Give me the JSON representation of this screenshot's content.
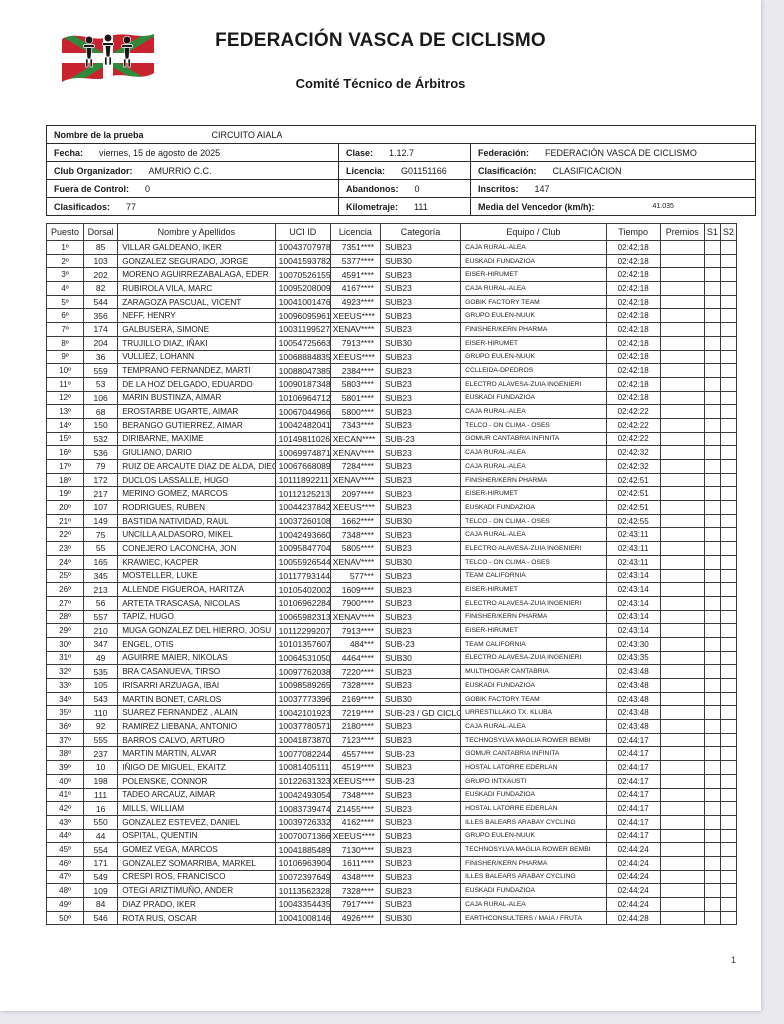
{
  "header": {
    "title": "FEDERACIÓN VASCA DE CICLISMO",
    "subtitle": "Comité Técnico de Árbitros",
    "logo": {
      "name": "basque-flag-cyclists-logo",
      "flag_red": "#c9242e",
      "flag_green": "#2f8a3c",
      "cross_white": "#ffffff"
    }
  },
  "info": {
    "nombre_prueba": {
      "label": "Nombre de la prueba",
      "value": "CIRCUITO AIALA"
    },
    "fecha": {
      "label": "Fecha:",
      "value": "viernes, 15 de agosto de 2025"
    },
    "clase": {
      "label": "Clase:",
      "value": "1.12.7"
    },
    "federacion": {
      "label": "Federación:",
      "value": "FEDERACIÓN VASCA DE CICLISMO"
    },
    "club_organizador": {
      "label": "Club Organizador:",
      "value": "AMURRIO C.C."
    },
    "licencia": {
      "label": "Licencia:",
      "value": "G01151166"
    },
    "clasificacion": {
      "label": "Clasificación:",
      "value": "CLASIFICACION"
    },
    "fuera_de_control": {
      "label": "Fuera de Control:",
      "value": "0"
    },
    "abandonos": {
      "label": "Abandonos:",
      "value": "0"
    },
    "inscritos": {
      "label": "Inscritos:",
      "value": "147"
    },
    "clasificados": {
      "label": "Clasificados:",
      "value": "77"
    },
    "kilometraje": {
      "label": "Kilometraje:",
      "value": "111"
    },
    "media_vencedor": {
      "label": "Media del Vencedor (km/h):",
      "value": "41.035"
    }
  },
  "table": {
    "columns": [
      {
        "key": "puesto",
        "label": "Puesto"
      },
      {
        "key": "dorsal",
        "label": "Dorsal"
      },
      {
        "key": "nombre",
        "label": "Nombre y Apellidos"
      },
      {
        "key": "uci_id",
        "label": "UCI ID"
      },
      {
        "key": "licencia",
        "label": "Licencia"
      },
      {
        "key": "categoria",
        "label": "Categoría"
      },
      {
        "key": "equipo",
        "label": "Equipo / Club"
      },
      {
        "key": "tiempo",
        "label": "Tiempo"
      },
      {
        "key": "premios",
        "label": "Premios"
      },
      {
        "key": "s1",
        "label": "S1"
      },
      {
        "key": "s2",
        "label": "S2"
      }
    ],
    "rows": [
      {
        "puesto": "1º",
        "dorsal": "85",
        "nombre": "VILLAR GALDEANO, IKER",
        "uci_id": "10043707978",
        "licencia": "7351****",
        "categoria": "SUB23",
        "equipo": "CAJA RURAL-ALEA",
        "tiempo": "02:42:18"
      },
      {
        "puesto": "2º",
        "dorsal": "103",
        "nombre": "GONZALEZ SEGURADO, JORGE",
        "uci_id": "10041593782",
        "licencia": "5377****",
        "categoria": "SUB30",
        "equipo": "EUSKADI FUNDAZIOA",
        "tiempo": "02:42:18"
      },
      {
        "puesto": "3º",
        "dorsal": "202",
        "nombre": "MORENO AGUIRREZABALAGA, EDER",
        "uci_id": "10070526155",
        "licencia": "4591****",
        "categoria": "SUB23",
        "equipo": "EISER-HIRUMET",
        "tiempo": "02:42:18"
      },
      {
        "puesto": "4º",
        "dorsal": "82",
        "nombre": "RUBIROLA VILA, MARC",
        "uci_id": "10095208009",
        "licencia": "4167****",
        "categoria": "SUB23",
        "equipo": "CAJA RURAL-ALEA",
        "tiempo": "02:42:18"
      },
      {
        "puesto": "5º",
        "dorsal": "544",
        "nombre": "ZARAGOZA PASCUAL, VICENT",
        "uci_id": "10041001476",
        "licencia": "4923****",
        "categoria": "SUB23",
        "equipo": "GOBIK FACTORY TEAM",
        "tiempo": "02:42:18"
      },
      {
        "puesto": "6º",
        "dorsal": "356",
        "nombre": "NEFF, HENRY",
        "uci_id": "10096095961",
        "licencia": "XEEUS****",
        "categoria": "SUB23",
        "equipo": "GRUPO EULEN-NUUK",
        "tiempo": "02:42:18"
      },
      {
        "puesto": "7º",
        "dorsal": "174",
        "nombre": "GALBUSERA, SIMONE",
        "uci_id": "10031199527",
        "licencia": "XENAV****",
        "categoria": "SUB23",
        "equipo": "FINISHER/KERN PHARMA",
        "tiempo": "02:42:18"
      },
      {
        "puesto": "8º",
        "dorsal": "204",
        "nombre": "TRUJILLO DIAZ, IÑAKI",
        "uci_id": "10054725663",
        "licencia": "7913****",
        "categoria": "SUB30",
        "equipo": "EISER-HIRUMET",
        "tiempo": "02:42:18"
      },
      {
        "puesto": "9º",
        "dorsal": "36",
        "nombre": "VULLIEZ, LOHANN",
        "uci_id": "10068884835",
        "licencia": "XEEUS****",
        "categoria": "SUB23",
        "equipo": "GRUPO EULEN-NUUK",
        "tiempo": "02:42:18"
      },
      {
        "puesto": "10º",
        "dorsal": "559",
        "nombre": "TEMPRANO FERNANDEZ, MARTI",
        "uci_id": "10088047385",
        "licencia": "2384****",
        "categoria": "SUB23",
        "equipo": "CCLLEIDA-DPEDROS",
        "tiempo": "02:42:18"
      },
      {
        "puesto": "11º",
        "dorsal": "53",
        "nombre": "DE LA HOZ DELGADO, EDUARDO",
        "uci_id": "10090187348",
        "licencia": "5803****",
        "categoria": "SUB23",
        "equipo": "ELECTRO ALAVESA-ZUIA INGENIERI",
        "tiempo": "02:42:18"
      },
      {
        "puesto": "12º",
        "dorsal": "106",
        "nombre": "MARIN BUSTINZA, AIMAR",
        "uci_id": "10106964712",
        "licencia": "5801****",
        "categoria": "SUB23",
        "equipo": "EUSKADI FUNDAZIOA",
        "tiempo": "02:42:18"
      },
      {
        "puesto": "13º",
        "dorsal": "68",
        "nombre": "EROSTARBE UGARTE, AIMAR",
        "uci_id": "10067044966",
        "licencia": "5800****",
        "categoria": "SUB23",
        "equipo": "CAJA RURAL-ALEA",
        "tiempo": "02:42:22"
      },
      {
        "puesto": "14º",
        "dorsal": "150",
        "nombre": "BERANGO GUTIERREZ, AIMAR",
        "uci_id": "10042482041",
        "licencia": "7343****",
        "categoria": "SUB23",
        "equipo": "TELCO - ON CLIMA - OSES",
        "tiempo": "02:42:22"
      },
      {
        "puesto": "15º",
        "dorsal": "532",
        "nombre": "DIRIBARNE, MAXIME",
        "uci_id": "10149811026",
        "licencia": "XECAN****",
        "categoria": "SUB-23",
        "equipo": "GOMUR CANTABRIA INFINITA",
        "tiempo": "02:42:22"
      },
      {
        "puesto": "16º",
        "dorsal": "536",
        "nombre": "GIULIANO, DARIO",
        "uci_id": "10069974871",
        "licencia": "XENAV****",
        "categoria": "SUB23",
        "equipo": "CAJA RURAL-ALEA",
        "tiempo": "02:42:32"
      },
      {
        "puesto": "17º",
        "dorsal": "79",
        "nombre": "RUIZ DE ARCAUTE DIAZ DE ALDA, DIEGO",
        "uci_id": "10067668089",
        "licencia": "7284****",
        "categoria": "SUB23",
        "equipo": "CAJA RURAL-ALEA",
        "tiempo": "02:42:32"
      },
      {
        "puesto": "18º",
        "dorsal": "172",
        "nombre": "DUCLOS LASSALLE, HUGO",
        "uci_id": "10111892211",
        "licencia": "XENAV****",
        "categoria": "SUB23",
        "equipo": "FINISHER/KERN PHARMA",
        "tiempo": "02:42:51"
      },
      {
        "puesto": "19º",
        "dorsal": "217",
        "nombre": "MERINO GOMEZ, MARCOS",
        "uci_id": "10112125213",
        "licencia": "2097****",
        "categoria": "SUB23",
        "equipo": "EISER-HIRUMET",
        "tiempo": "02:42:51"
      },
      {
        "puesto": "20º",
        "dorsal": "107",
        "nombre": "RODRIGUES, RUBEN",
        "uci_id": "10044237842",
        "licencia": "XEEUS****",
        "categoria": "SUB23",
        "equipo": "EUSKADI FUNDAZIOA",
        "tiempo": "02:42:51"
      },
      {
        "puesto": "21º",
        "dorsal": "149",
        "nombre": "BASTIDA NATIVIDAD, RAUL",
        "uci_id": "10037260108",
        "licencia": "1662****",
        "categoria": "SUB30",
        "equipo": "TELCO - ON CLIMA - OSES",
        "tiempo": "02:42:55"
      },
      {
        "puesto": "22º",
        "dorsal": "75",
        "nombre": "UNCILLA ALDASORO, MIKEL",
        "uci_id": "10042493660",
        "licencia": "7348****",
        "categoria": "SUB23",
        "equipo": "CAJA RURAL-ALEA",
        "tiempo": "02:43:11"
      },
      {
        "puesto": "23º",
        "dorsal": "55",
        "nombre": "CONEJERO LACONCHA, JON",
        "uci_id": "10095847704",
        "licencia": "5805****",
        "categoria": "SUB23",
        "equipo": "ELECTRO ALAVESA-ZUIA INGENIERI",
        "tiempo": "02:43:11"
      },
      {
        "puesto": "24º",
        "dorsal": "165",
        "nombre": "KRAWIEC, KACPER",
        "uci_id": "10055926544",
        "licencia": "XENAV****",
        "categoria": "SUB30",
        "equipo": "TELCO - ON CLIMA - OSES",
        "tiempo": "02:43:11"
      },
      {
        "puesto": "25º",
        "dorsal": "345",
        "nombre": "MOSTELLER, LUKE",
        "uci_id": "10117793144",
        "licencia": "577***",
        "categoria": "SUB23",
        "equipo": "TEAM CALIFORNIA",
        "tiempo": "02:43:14"
      },
      {
        "puesto": "26º",
        "dorsal": "213",
        "nombre": "ALLENDE FIGUEROA, HARITZA",
        "uci_id": "10105402002",
        "licencia": "1609****",
        "categoria": "SUB23",
        "equipo": "EISER-HIRUMET",
        "tiempo": "02:43:14"
      },
      {
        "puesto": "27º",
        "dorsal": "56",
        "nombre": "ARTETA TRASCASA, NICOLAS",
        "uci_id": "10106962284",
        "licencia": "7900****",
        "categoria": "SUB23",
        "equipo": "ELECTRO ALAVESA-ZUIA INGENIERI",
        "tiempo": "02:43:14"
      },
      {
        "puesto": "28º",
        "dorsal": "557",
        "nombre": "TAPIZ, HUGO",
        "uci_id": "10065982313",
        "licencia": "XENAV****",
        "categoria": "SUB23",
        "equipo": "FINISHER/KERN PHARMA",
        "tiempo": "02:43:14"
      },
      {
        "puesto": "29º",
        "dorsal": "210",
        "nombre": "MUGA GONZALEZ DEL HIERRO, JOSU",
        "uci_id": "10112299207",
        "licencia": "7913****",
        "categoria": "SUB23",
        "equipo": "EISER-HIRUMET",
        "tiempo": "02:43:14"
      },
      {
        "puesto": "30º",
        "dorsal": "347",
        "nombre": "ENGEL, OTIS",
        "uci_id": "10101357607",
        "licencia": "484***",
        "categoria": "SUB-23",
        "equipo": "TEAM CALIFORNIA",
        "tiempo": "02:43:30"
      },
      {
        "puesto": "31º",
        "dorsal": "49",
        "nombre": "AGUIRRE MAIER, NIKOLAS",
        "uci_id": "10064531050",
        "licencia": "4464****",
        "categoria": "SUB30",
        "equipo": "ELECTRO ALAVESA-ZUIA INGENIERI",
        "tiempo": "02:43:35"
      },
      {
        "puesto": "32º",
        "dorsal": "535",
        "nombre": "BRA CASANUEVA, TIRSO",
        "uci_id": "10097762038",
        "licencia": "7220****",
        "categoria": "SUB23",
        "equipo": "MULTIHOGAR CANTABRIA",
        "tiempo": "02:43:48"
      },
      {
        "puesto": "33º",
        "dorsal": "105",
        "nombre": "IRISARRI ARZUAGA, IBAI",
        "uci_id": "10098589265",
        "licencia": "7328****",
        "categoria": "SUB23",
        "equipo": "EUSKADI FUNDAZIOA",
        "tiempo": "02:43:48"
      },
      {
        "puesto": "34º",
        "dorsal": "543",
        "nombre": "MARTIN BONET, CARLOS",
        "uci_id": "10037773396",
        "licencia": "2169****",
        "categoria": "SUB30",
        "equipo": "GOBIK FACTORY TEAM",
        "tiempo": "02:43:48"
      },
      {
        "puesto": "35º",
        "dorsal": "110",
        "nombre": "SUAREZ FERNANDEZ , ALAIN",
        "uci_id": "10042101923",
        "licencia": "7219****",
        "categoria": "SUB-23 / GD CICLOC",
        "equipo": "URRESTILLAKO TX. KLUBA",
        "tiempo": "02:43:48"
      },
      {
        "puesto": "36º",
        "dorsal": "92",
        "nombre": "RAMIREZ LIEBANA, ANTONIO",
        "uci_id": "10037780571",
        "licencia": "2180****",
        "categoria": "SUB23",
        "equipo": "CAJA RURAL-ALEA",
        "tiempo": "02:43:48"
      },
      {
        "puesto": "37º",
        "dorsal": "555",
        "nombre": "BARROS CALVO, ARTURO",
        "uci_id": "10041873870",
        "licencia": "7123****",
        "categoria": "SUB23",
        "equipo": "TECHNOSYLVA MAGLIA ROWER BEMBI",
        "tiempo": "02:44:17"
      },
      {
        "puesto": "38º",
        "dorsal": "237",
        "nombre": "MARTIN MARTIN, ALVAR",
        "uci_id": "10077082244",
        "licencia": "4557****",
        "categoria": "SUB-23",
        "equipo": "GOMUR CANTABRIA INFINITA",
        "tiempo": "02:44:17"
      },
      {
        "puesto": "39º",
        "dorsal": "10",
        "nombre": "IÑIGO DE MIGUEL, EKAITZ",
        "uci_id": "10081405111",
        "licencia": "4519****",
        "categoria": "SUB23",
        "equipo": "HOSTAL LATORRE EDERLAN",
        "tiempo": "02:44:17"
      },
      {
        "puesto": "40º",
        "dorsal": "198",
        "nombre": "POLENSKE, CONNOR",
        "uci_id": "10122631323",
        "licencia": "XEEUS****",
        "categoria": "SUB-23",
        "equipo": "GRUPO INTXAUSTI",
        "tiempo": "02:44:17"
      },
      {
        "puesto": "41º",
        "dorsal": "111",
        "nombre": "TADEO ARCAUZ, AIMAR",
        "uci_id": "10042493054",
        "licencia": "7348****",
        "categoria": "SUB23",
        "equipo": "EUSKADI FUNDAZIOA",
        "tiempo": "02:44:17"
      },
      {
        "puesto": "42º",
        "dorsal": "16",
        "nombre": "MILLS, WILLIAM",
        "uci_id": "10083739474",
        "licencia": "Z1455****",
        "categoria": "SUB23",
        "equipo": "HOSTAL LATORRE EDERLAN",
        "tiempo": "02:44:17"
      },
      {
        "puesto": "43º",
        "dorsal": "550",
        "nombre": "GONZALEZ ESTEVEZ, DANIEL",
        "uci_id": "10039726332",
        "licencia": "4162****",
        "categoria": "SUB23",
        "equipo": "ILLES BALEARS ARABAY CYCLING",
        "tiempo": "02:44:17"
      },
      {
        "puesto": "44º",
        "dorsal": "44",
        "nombre": "OSPITAL, QUENTIN",
        "uci_id": "10070071366",
        "licencia": "XEEUS****",
        "categoria": "SUB23",
        "equipo": "GRUPO EULEN-NUUK",
        "tiempo": "02:44:17"
      },
      {
        "puesto": "45º",
        "dorsal": "554",
        "nombre": "GOMEZ VEGA, MARCOS",
        "uci_id": "10041885489",
        "licencia": "7130****",
        "categoria": "SUB23",
        "equipo": "TECHNOSYLVA MAGLIA ROWER BEMBI",
        "tiempo": "02:44:24"
      },
      {
        "puesto": "46º",
        "dorsal": "171",
        "nombre": "GONZALEZ SOMARRIBA, MARKEL",
        "uci_id": "10106963904",
        "licencia": "1611****",
        "categoria": "SUB23",
        "equipo": "FINISHER/KERN PHARMA",
        "tiempo": "02:44:24"
      },
      {
        "puesto": "47º",
        "dorsal": "549",
        "nombre": "CRESPI ROS, FRANCISCO",
        "uci_id": "10072397649",
        "licencia": "4348****",
        "categoria": "SUB23",
        "equipo": "ILLES BALEARS ARABAY CYCLING",
        "tiempo": "02:44:24"
      },
      {
        "puesto": "48º",
        "dorsal": "109",
        "nombre": "OTEGI ARIZTIMUÑO, ANDER",
        "uci_id": "10113562328",
        "licencia": "7328****",
        "categoria": "SUB23",
        "equipo": "EUSKADI FUNDAZIOA",
        "tiempo": "02:44:24"
      },
      {
        "puesto": "49º",
        "dorsal": "84",
        "nombre": "DIAZ PRADO, IKER",
        "uci_id": "10043354435",
        "licencia": "7917****",
        "categoria": "SUB23",
        "equipo": "CAJA RURAL-ALEA",
        "tiempo": "02:44:24"
      },
      {
        "puesto": "50º",
        "dorsal": "546",
        "nombre": "ROTA RUS, OSCAR",
        "uci_id": "10041008146",
        "licencia": "4926****",
        "categoria": "SUB30",
        "equipo": "EARTHCONSULTERS / MAIA / FRUTA",
        "tiempo": "02:44:28"
      }
    ]
  },
  "footer": {
    "page_number": "1"
  }
}
